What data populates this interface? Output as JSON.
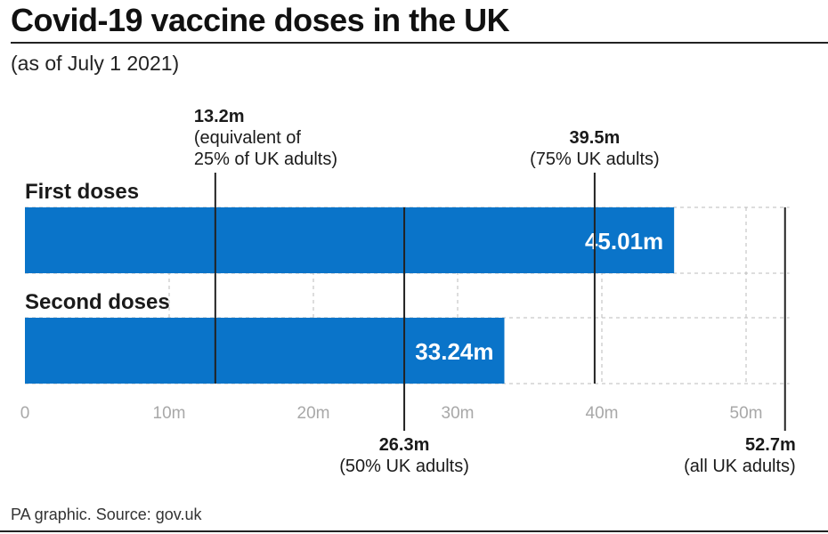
{
  "header": {
    "title": "Covid-19 vaccine doses in the UK",
    "subtitle": "(as of July 1 2021)"
  },
  "footer": {
    "source": "PA graphic. Source: gov.uk"
  },
  "colors": {
    "bar": "#0a74c9",
    "bar_label": "#ffffff",
    "text": "#1a1a1a",
    "grid": "#bbbbbb"
  },
  "chart_data": {
    "type": "bar",
    "orientation": "horizontal",
    "title": "Covid-19 vaccine doses in the UK",
    "subtitle": "(as of July 1 2021)",
    "categories": [
      "First doses",
      "Second doses"
    ],
    "values": [
      45.01,
      33.24
    ],
    "value_labels": [
      "45.01m",
      "33.24m"
    ],
    "units": "millions",
    "xlim": [
      0,
      53
    ],
    "xticks": [
      0,
      10,
      20,
      30,
      40,
      50
    ],
    "xtick_labels": [
      "0",
      "10m",
      "20m",
      "30m",
      "40m",
      "50m"
    ],
    "grid": true,
    "reference_lines": [
      {
        "value": 13.2,
        "label_lines": [
          "13.2m",
          "(equivalent of",
          "25% of UK adults)"
        ],
        "position": "top"
      },
      {
        "value": 26.3,
        "label_lines": [
          "26.3m",
          "(50% UK adults)"
        ],
        "position": "bottom"
      },
      {
        "value": 39.5,
        "label_lines": [
          "39.5m",
          "(75% UK adults)"
        ],
        "position": "top"
      },
      {
        "value": 52.7,
        "label_lines": [
          "52.7m",
          "(all UK adults)"
        ],
        "position": "bottom"
      }
    ]
  }
}
